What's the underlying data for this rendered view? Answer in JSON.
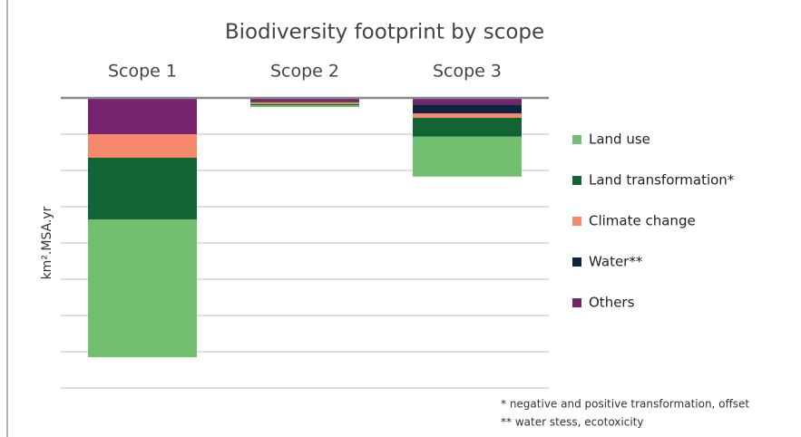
{
  "chart_data": {
    "type": "stacked_bar",
    "title": "Biodiversity footprint by scope",
    "categories": [
      "Scope 1",
      "Scope 2",
      "Scope 3"
    ],
    "y_label": "km².MSA.yr",
    "series": [
      {
        "name": "Land use",
        "color": "#72bf6f",
        "values": [
          -3.8,
          -0.05,
          -1.1
        ]
      },
      {
        "name": "Land transformation*",
        "color": "#126435",
        "values": [
          -1.7,
          -0.03,
          -0.52
        ]
      },
      {
        "name": "Climate change",
        "color": "#f4896b",
        "values": [
          -0.65,
          -0.05,
          -0.12
        ]
      },
      {
        "name": "Water**",
        "color": "#0f2440",
        "values": [
          0,
          -0.02,
          -0.25
        ]
      },
      {
        "name": "Others",
        "color": "#77246f",
        "values": [
          -1.0,
          -0.1,
          -0.18
        ]
      }
    ],
    "ylim": [
      -8,
      0
    ],
    "yticks": [
      -8,
      -7,
      -6,
      -5,
      -4,
      -3,
      -2,
      -1,
      0
    ],
    "grid": true,
    "footnotes": [
      "* negative and positive transformation, offset",
      "** water stess, ecotoxicity"
    ]
  }
}
